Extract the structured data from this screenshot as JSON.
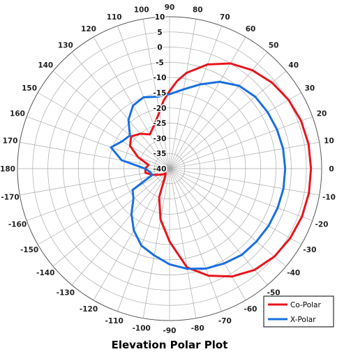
{
  "chart_data": {
    "type": "polar",
    "title": "Elevation Polar Plot",
    "angle_ticks": [
      90,
      80,
      70,
      60,
      50,
      40,
      30,
      20,
      10,
      0,
      -10,
      -20,
      -30,
      -40,
      -50,
      -60,
      -70,
      -80,
      -90,
      -100,
      -110,
      -120,
      -130,
      -140,
      -150,
      -160,
      -170,
      180,
      170,
      160,
      150,
      140,
      130,
      120,
      110,
      100
    ],
    "radial_ticks": [
      10,
      5,
      0,
      -5,
      -10,
      -15,
      -20,
      -25,
      -30,
      -35,
      -40
    ],
    "rlim": [
      -40,
      10
    ],
    "legend": {
      "placement": "bottom-right"
    },
    "series": [
      {
        "name": "Co-Polar",
        "color": "#e8141c",
        "points": [
          [
            0,
            6.5
          ],
          [
            10,
            6.4
          ],
          [
            20,
            6
          ],
          [
            30,
            5.2
          ],
          [
            40,
            4
          ],
          [
            50,
            2.3
          ],
          [
            60,
            0
          ],
          [
            70,
            -3.5
          ],
          [
            80,
            -8
          ],
          [
            85,
            -11
          ],
          [
            90,
            -14.5
          ],
          [
            95,
            -17.5
          ],
          [
            100,
            -21
          ],
          [
            110,
            -25
          ],
          [
            120,
            -27
          ],
          [
            130,
            -25
          ],
          [
            140,
            -23.5
          ],
          [
            150,
            -25
          ],
          [
            160,
            -29
          ],
          [
            170,
            -33
          ],
          [
            180,
            -32
          ],
          [
            -170,
            -32
          ],
          [
            -160,
            -34
          ],
          [
            -150,
            -36
          ],
          [
            -140,
            -37
          ],
          [
            -130,
            -38
          ],
          [
            -120,
            -37
          ],
          [
            -110,
            -30
          ],
          [
            -100,
            -23
          ],
          [
            -90,
            -16
          ],
          [
            -80,
            -7
          ],
          [
            -70,
            -2.5
          ],
          [
            -60,
            1
          ],
          [
            -50,
            3.5
          ],
          [
            -40,
            5
          ],
          [
            -30,
            5.8
          ],
          [
            -20,
            6.3
          ],
          [
            -10,
            6.5
          ],
          [
            0,
            6.5
          ]
        ]
      },
      {
        "name": "X-Polar",
        "color": "#1a6fe0",
        "points": [
          [
            0,
            -2
          ],
          [
            10,
            -2.1
          ],
          [
            20,
            -2.4
          ],
          [
            30,
            -2.8
          ],
          [
            40,
            -3.2
          ],
          [
            50,
            -4.4
          ],
          [
            60,
            -7
          ],
          [
            70,
            -10.5
          ],
          [
            80,
            -13.5
          ],
          [
            90,
            -15.5
          ],
          [
            100,
            -16
          ],
          [
            110,
            -15
          ],
          [
            120,
            -16
          ],
          [
            130,
            -19
          ],
          [
            140,
            -23
          ],
          [
            150,
            -22
          ],
          [
            160,
            -19.5
          ],
          [
            170,
            -24
          ],
          [
            180,
            -32
          ],
          [
            -170,
            -33.5
          ],
          [
            -160,
            -34
          ],
          [
            -150,
            -26
          ],
          [
            -140,
            -24.5
          ],
          [
            -130,
            -20.5
          ],
          [
            -120,
            -16.5
          ],
          [
            -110,
            -13
          ],
          [
            -100,
            -11
          ],
          [
            -90,
            -8.5
          ],
          [
            -80,
            -6.5
          ],
          [
            -70,
            -5
          ],
          [
            -60,
            -4
          ],
          [
            -50,
            -3
          ],
          [
            -40,
            -2.7
          ],
          [
            -30,
            -2.4
          ],
          [
            -20,
            -2.2
          ],
          [
            -10,
            -2
          ],
          [
            0,
            -2
          ]
        ]
      }
    ]
  }
}
